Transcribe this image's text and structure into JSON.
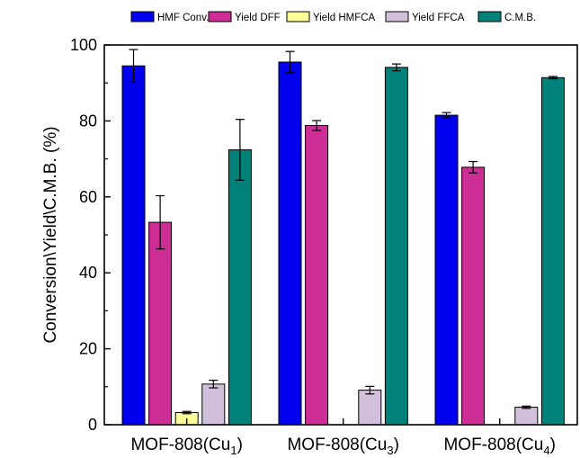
{
  "chart_data": {
    "type": "bar",
    "title": "",
    "xlabel": "",
    "ylabel": "Conversion\\Yield\\C.M.B. (%)",
    "ylim": [
      0,
      100
    ],
    "yticks": [
      "0",
      "20",
      "40",
      "60",
      "80",
      "100"
    ],
    "categories": [
      {
        "base": "MOF-808(Cu",
        "sub": "1",
        "close": ")"
      },
      {
        "base": "MOF-808(Cu",
        "sub": "3",
        "close": ")"
      },
      {
        "base": "MOF-808(Cu",
        "sub": "4",
        "close": ")"
      }
    ],
    "legend_position": "top",
    "grid": false,
    "series": [
      {
        "name": "HMF Conv.",
        "color": "#0000ee",
        "values": [
          94.5,
          95.5,
          81.5
        ],
        "errors": [
          4.3,
          2.8,
          0.7
        ]
      },
      {
        "name": "Yield DFF",
        "color": "#cc2e96",
        "values": [
          53.3,
          78.8,
          67.8
        ],
        "errors": [
          7.0,
          1.3,
          1.5
        ]
      },
      {
        "name": "Yield HMFCA",
        "color": "#ffff99",
        "values": [
          3.2,
          0,
          0
        ],
        "errors": [
          0.3,
          0,
          0
        ]
      },
      {
        "name": "Yield FFCA",
        "color": "#d0c0dc",
        "values": [
          10.7,
          9.1,
          4.6
        ],
        "errors": [
          1.0,
          1.0,
          0.3
        ]
      },
      {
        "name": "C.M.B.",
        "color": "#00827a",
        "values": [
          72.4,
          94.1,
          91.4
        ],
        "errors": [
          8.0,
          0.9,
          0.3
        ]
      }
    ]
  }
}
